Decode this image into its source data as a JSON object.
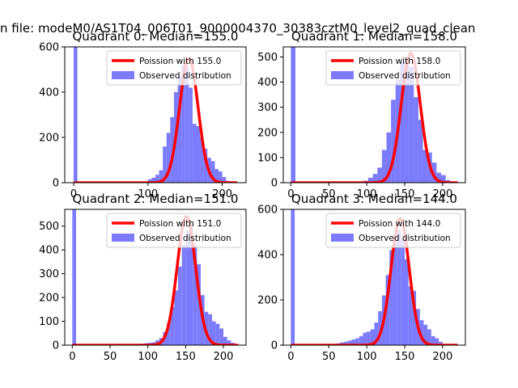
{
  "figure": {
    "suptitle": "n file: modeM0/AS1T04_006T01_9000004370_30383cztM0_level2_quad_clean"
  },
  "colors": {
    "hist": "#7b7bfb",
    "poisson": "#ff0000",
    "axis": "#000000"
  },
  "legend": {
    "observed_label": "Observed distribution"
  },
  "chart_data": [
    {
      "type": "bar",
      "title": "Quadrant 0: Median=155.0",
      "median": 155.0,
      "poisson_label": "Poission with 155.0",
      "legend_position": "top-right",
      "xlim": [
        -12,
        232
      ],
      "ylim": [
        0,
        600
      ],
      "xticks": [
        0,
        100,
        200
      ],
      "yticks": [
        0,
        200,
        400,
        600
      ],
      "bin_width": 5,
      "zero_spike": 600,
      "bins_x": [
        95,
        100,
        105,
        110,
        115,
        120,
        125,
        130,
        135,
        140,
        145,
        150,
        155,
        160,
        165,
        170,
        175,
        180,
        185,
        190,
        195,
        200,
        205
      ],
      "bins_y": [
        5,
        15,
        22,
        35,
        55,
        160,
        220,
        290,
        400,
        470,
        520,
        510,
        420,
        260,
        250,
        200,
        150,
        110,
        95,
        60,
        50,
        25,
        8
      ],
      "curve_peak": 550
    },
    {
      "type": "bar",
      "title": "Quadrant 1: Median=158.0",
      "median": 158.0,
      "poisson_label": "Poission with 158.0",
      "legend_position": "top-right",
      "xlim": [
        -10,
        230
      ],
      "ylim": [
        0,
        540
      ],
      "xticks": [
        0,
        50,
        100,
        150,
        200
      ],
      "yticks": [
        0,
        100,
        200,
        300,
        400,
        500
      ],
      "bin_width": 6,
      "zero_spike": 540,
      "bins_x": [
        90,
        96,
        102,
        108,
        114,
        120,
        126,
        132,
        138,
        144,
        150,
        156,
        162,
        168,
        174,
        180,
        186,
        192,
        198,
        204,
        210
      ],
      "bins_y": [
        3,
        8,
        20,
        35,
        60,
        130,
        200,
        330,
        410,
        480,
        500,
        460,
        340,
        250,
        130,
        120,
        80,
        40,
        30,
        10,
        5
      ],
      "curve_peak": 515
    },
    {
      "type": "bar",
      "title": "Quadrant 2: Median=151.0",
      "median": 151.0,
      "poisson_label": "Poission with 151.0",
      "legend_position": "top-right",
      "xlim": [
        -10,
        230
      ],
      "ylim": [
        0,
        570
      ],
      "xticks": [
        0,
        50,
        100,
        150,
        200
      ],
      "yticks": [
        0,
        100,
        200,
        300,
        400,
        500
      ],
      "bin_width": 5,
      "zero_spike": 570,
      "bins_x": [
        85,
        90,
        95,
        100,
        105,
        110,
        115,
        120,
        125,
        130,
        135,
        140,
        145,
        150,
        155,
        160,
        165,
        170,
        175,
        180,
        185,
        190,
        195,
        200,
        205,
        210
      ],
      "bins_y": [
        3,
        6,
        8,
        10,
        12,
        20,
        30,
        55,
        90,
        160,
        230,
        330,
        420,
        480,
        510,
        420,
        340,
        210,
        140,
        130,
        100,
        90,
        70,
        35,
        20,
        10
      ],
      "curve_peak": 540
    },
    {
      "type": "bar",
      "title": "Quadrant 3: Median=144.0",
      "median": 144.0,
      "poisson_label": "Poission with 144.0",
      "legend_position": "top-right",
      "xlim": [
        -10,
        230
      ],
      "ylim": [
        0,
        600
      ],
      "xticks": [
        0,
        50,
        100,
        150,
        200
      ],
      "yticks": [
        0,
        200,
        400,
        600
      ],
      "bin_width": 5,
      "zero_spike": 600,
      "bins_x": [
        55,
        60,
        65,
        70,
        75,
        80,
        85,
        90,
        95,
        100,
        105,
        110,
        115,
        120,
        125,
        130,
        135,
        140,
        145,
        150,
        155,
        160,
        165,
        170,
        175,
        180,
        185,
        190,
        195,
        200
      ],
      "bins_y": [
        4,
        8,
        12,
        15,
        20,
        25,
        30,
        40,
        55,
        60,
        70,
        100,
        150,
        220,
        310,
        420,
        480,
        510,
        470,
        380,
        260,
        240,
        160,
        110,
        90,
        70,
        40,
        30,
        15,
        5
      ],
      "curve_peak": 560
    }
  ]
}
